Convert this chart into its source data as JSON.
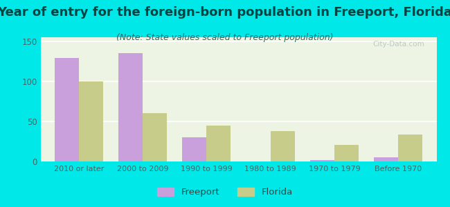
{
  "title": "Year of entry for the foreign-born population in Freeport, Florida",
  "subtitle": "(Note: State values scaled to Freeport population)",
  "categories": [
    "2010 or later",
    "2000 to 2009",
    "1990 to 1999",
    "1980 to 1989",
    "1970 to 1979",
    "Before 1970"
  ],
  "freeport_values": [
    129,
    135,
    30,
    0,
    2,
    5
  ],
  "florida_values": [
    100,
    60,
    45,
    38,
    21,
    34
  ],
  "freeport_color": "#c9a0dc",
  "florida_color": "#c8cc8a",
  "background_outer": "#00e8e8",
  "background_chart": "#eef4e4",
  "ylim": [
    0,
    155
  ],
  "yticks": [
    0,
    50,
    100,
    150
  ],
  "bar_width": 0.38,
  "title_fontsize": 13,
  "subtitle_fontsize": 9,
  "title_color": "#004444",
  "subtitle_color": "#336666",
  "legend_labels": [
    "Freeport",
    "Florida"
  ],
  "watermark": "City-Data.com"
}
